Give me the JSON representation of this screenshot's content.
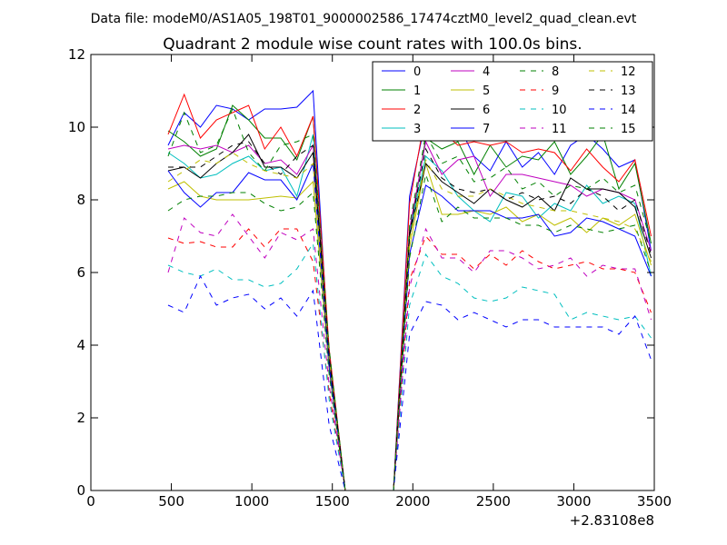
{
  "header": {
    "data_file": "Data file: modeM0/AS1A05_198T01_9000002586_17474cztM0_level2_quad_clean.evt",
    "title": "Quadrant 2 module wise count rates with 100.0s bins."
  },
  "chart_data": {
    "type": "line",
    "title": "Quadrant 2 module wise count rates with 100.0s bins.",
    "xlabel": "",
    "ylabel": "",
    "x_offset_label": "+2.83108e8",
    "xlim": [
      0,
      3500
    ],
    "ylim": [
      0,
      12
    ],
    "xticks": [
      0,
      500,
      1000,
      1500,
      2000,
      2500,
      3000,
      3500
    ],
    "yticks": [
      0,
      2,
      4,
      6,
      8,
      10,
      12
    ],
    "grid": false,
    "legend_position": "top-right",
    "x": [
      480,
      580,
      680,
      780,
      880,
      980,
      1080,
      1180,
      1280,
      1380,
      1480,
      1580,
      1680,
      1780,
      1880,
      1980,
      2080,
      2180,
      2280,
      2380,
      2480,
      2580,
      2680,
      2780,
      2880,
      2980,
      3080,
      3180,
      3280,
      3380,
      3480
    ],
    "series": [
      {
        "name": "0",
        "color": "#0000ff",
        "style": "solid",
        "values": [
          9.5,
          10.4,
          10.0,
          10.6,
          10.5,
          10.2,
          10.5,
          10.5,
          10.55,
          11.0,
          3.6,
          0,
          0,
          0,
          0,
          8.1,
          10.2,
          10.3,
          10.1,
          9.2,
          8.8,
          9.6,
          8.9,
          9.3,
          8.7,
          9.5,
          9.8,
          9.4,
          8.9,
          9.1,
          6.6
        ]
      },
      {
        "name": "1",
        "color": "#008000",
        "style": "solid",
        "values": [
          9.9,
          9.6,
          9.2,
          9.4,
          10.6,
          10.2,
          9.7,
          9.7,
          9.1,
          10.3,
          3.8,
          0,
          0,
          0,
          0,
          7.0,
          9.7,
          9.4,
          9.6,
          8.7,
          9.5,
          8.9,
          9.2,
          9.1,
          9.6,
          8.7,
          9.2,
          9.8,
          8.3,
          9.0,
          6.8
        ]
      },
      {
        "name": "2",
        "color": "#ff0000",
        "style": "solid",
        "values": [
          9.8,
          10.9,
          9.7,
          10.2,
          10.4,
          10.6,
          9.4,
          10.0,
          9.2,
          10.3,
          3.9,
          0,
          0,
          0,
          0,
          7.9,
          10.4,
          9.9,
          9.5,
          9.6,
          9.5,
          9.6,
          9.3,
          9.4,
          9.3,
          8.8,
          9.4,
          8.9,
          8.5,
          9.1,
          7.0
        ]
      },
      {
        "name": "3",
        "color": "#00bfbf",
        "style": "solid",
        "values": [
          9.3,
          9.0,
          8.6,
          8.7,
          9.0,
          9.2,
          8.8,
          8.9,
          8.1,
          9.8,
          3.5,
          0,
          0,
          0,
          0,
          7.1,
          9.2,
          8.8,
          8.1,
          7.7,
          7.4,
          8.2,
          8.1,
          7.5,
          7.9,
          7.7,
          8.4,
          7.9,
          8.1,
          7.9,
          5.9
        ]
      },
      {
        "name": "4",
        "color": "#bf00bf",
        "style": "solid",
        "values": [
          9.4,
          9.5,
          9.4,
          9.5,
          9.3,
          9.5,
          9.0,
          9.1,
          8.7,
          9.5,
          3.7,
          0,
          0,
          0,
          0,
          7.2,
          9.6,
          8.7,
          9.1,
          9.2,
          8.1,
          8.7,
          8.7,
          8.6,
          8.5,
          8.4,
          8.1,
          8.3,
          8.2,
          8.0,
          6.6
        ]
      },
      {
        "name": "5",
        "color": "#bfbf00",
        "style": "solid",
        "values": [
          8.3,
          8.5,
          8.1,
          8.0,
          8.0,
          8.0,
          8.05,
          8.1,
          8.05,
          8.5,
          3.3,
          0,
          0,
          0,
          0,
          6.7,
          9.0,
          7.6,
          7.6,
          7.7,
          7.6,
          7.8,
          7.4,
          7.6,
          7.3,
          7.5,
          7.1,
          7.5,
          7.3,
          7.6,
          6.2
        ]
      },
      {
        "name": "6",
        "color": "#000000",
        "style": "solid",
        "values": [
          8.8,
          8.9,
          8.6,
          9.0,
          9.3,
          9.8,
          8.9,
          8.9,
          8.6,
          9.3,
          3.6,
          0,
          0,
          0,
          0,
          7.0,
          9.0,
          8.5,
          8.2,
          7.9,
          8.3,
          8.0,
          7.8,
          8.1,
          7.7,
          8.6,
          8.3,
          8.3,
          8.2,
          7.8,
          6.4
        ]
      },
      {
        "name": "7",
        "color": "#0000ff",
        "style": "solid",
        "values": [
          8.8,
          8.2,
          7.8,
          8.2,
          8.2,
          8.75,
          8.55,
          8.55,
          8.0,
          9.0,
          3.4,
          0,
          0,
          0,
          0,
          6.5,
          8.4,
          8.1,
          7.7,
          7.7,
          7.7,
          7.5,
          7.5,
          7.6,
          7.0,
          7.1,
          7.5,
          7.4,
          7.2,
          7.0,
          5.9
        ]
      },
      {
        "name": "8",
        "color": "#008000",
        "style": "dashed",
        "values": [
          7.7,
          8.0,
          8.1,
          8.1,
          8.2,
          8.2,
          7.9,
          7.7,
          7.8,
          8.2,
          3.2,
          0,
          0,
          0,
          0,
          6.4,
          8.7,
          7.4,
          7.8,
          7.5,
          7.5,
          7.5,
          7.3,
          7.3,
          7.1,
          7.3,
          7.2,
          7.1,
          7.2,
          7.3,
          6.0
        ]
      },
      {
        "name": "9",
        "color": "#ff0000",
        "style": "dashed",
        "values": [
          6.95,
          6.8,
          6.85,
          6.7,
          6.7,
          7.2,
          6.7,
          7.2,
          7.2,
          6.3,
          2.7,
          0,
          0,
          0,
          0,
          5.8,
          7.0,
          6.5,
          6.5,
          6.1,
          6.5,
          6.2,
          6.6,
          6.3,
          6.1,
          6.2,
          6.3,
          6.1,
          6.1,
          6.0,
          4.9
        ]
      },
      {
        "name": "10",
        "color": "#00bfbf",
        "style": "dashed",
        "values": [
          6.2,
          6.0,
          5.9,
          6.1,
          5.8,
          5.8,
          5.6,
          5.7,
          6.1,
          6.8,
          2.5,
          0,
          0,
          0,
          0,
          5.1,
          6.5,
          5.9,
          5.7,
          5.3,
          5.2,
          5.3,
          5.6,
          5.5,
          5.4,
          4.7,
          4.9,
          4.8,
          4.7,
          4.8,
          4.2
        ]
      },
      {
        "name": "11",
        "color": "#bf00bf",
        "style": "dashed",
        "values": [
          6.0,
          7.5,
          7.1,
          7.0,
          7.6,
          7.0,
          6.4,
          7.1,
          6.9,
          7.2,
          2.9,
          0,
          0,
          0,
          0,
          5.6,
          7.2,
          6.4,
          6.4,
          6.0,
          6.6,
          6.6,
          6.4,
          6.1,
          6.2,
          6.4,
          5.9,
          6.2,
          6.1,
          6.1,
          4.7
        ]
      },
      {
        "name": "12",
        "color": "#bfbf00",
        "style": "dashed",
        "values": [
          8.5,
          8.8,
          9.1,
          9.0,
          9.3,
          9.0,
          8.8,
          8.7,
          8.6,
          9.0,
          3.6,
          0,
          0,
          0,
          0,
          6.9,
          9.1,
          8.3,
          8.1,
          8.1,
          8.3,
          8.1,
          7.9,
          7.8,
          7.7,
          7.7,
          7.6,
          7.5,
          7.4,
          7.2,
          6.3
        ]
      },
      {
        "name": "13",
        "color": "#000000",
        "style": "dashed",
        "values": [
          8.9,
          8.9,
          8.9,
          9.2,
          9.5,
          9.6,
          9.0,
          8.7,
          9.2,
          9.5,
          3.7,
          0,
          0,
          0,
          0,
          7.1,
          9.4,
          8.6,
          8.3,
          8.2,
          8.3,
          8.0,
          8.2,
          8.0,
          8.1,
          7.9,
          8.3,
          8.1,
          7.7,
          8.0,
          6.5
        ]
      },
      {
        "name": "14",
        "color": "#0000ff",
        "style": "dashed",
        "values": [
          5.1,
          4.9,
          5.9,
          5.1,
          5.3,
          5.4,
          5.0,
          5.3,
          4.8,
          5.5,
          1.8,
          0,
          0,
          0,
          0,
          4.3,
          5.2,
          5.1,
          4.7,
          4.9,
          4.7,
          4.5,
          4.7,
          4.7,
          4.5,
          4.5,
          4.5,
          4.5,
          4.3,
          4.8,
          3.6
        ]
      },
      {
        "name": "15",
        "color": "#008000",
        "style": "dashed",
        "values": [
          9.2,
          10.4,
          9.3,
          9.5,
          10.5,
          9.3,
          8.8,
          9.5,
          9.6,
          9.8,
          3.9,
          0,
          0,
          0,
          0,
          7.3,
          9.8,
          9.0,
          9.2,
          8.5,
          8.6,
          8.9,
          8.3,
          8.5,
          8.1,
          8.4,
          8.3,
          8.6,
          8.2,
          8.4,
          6.8
        ]
      }
    ]
  }
}
